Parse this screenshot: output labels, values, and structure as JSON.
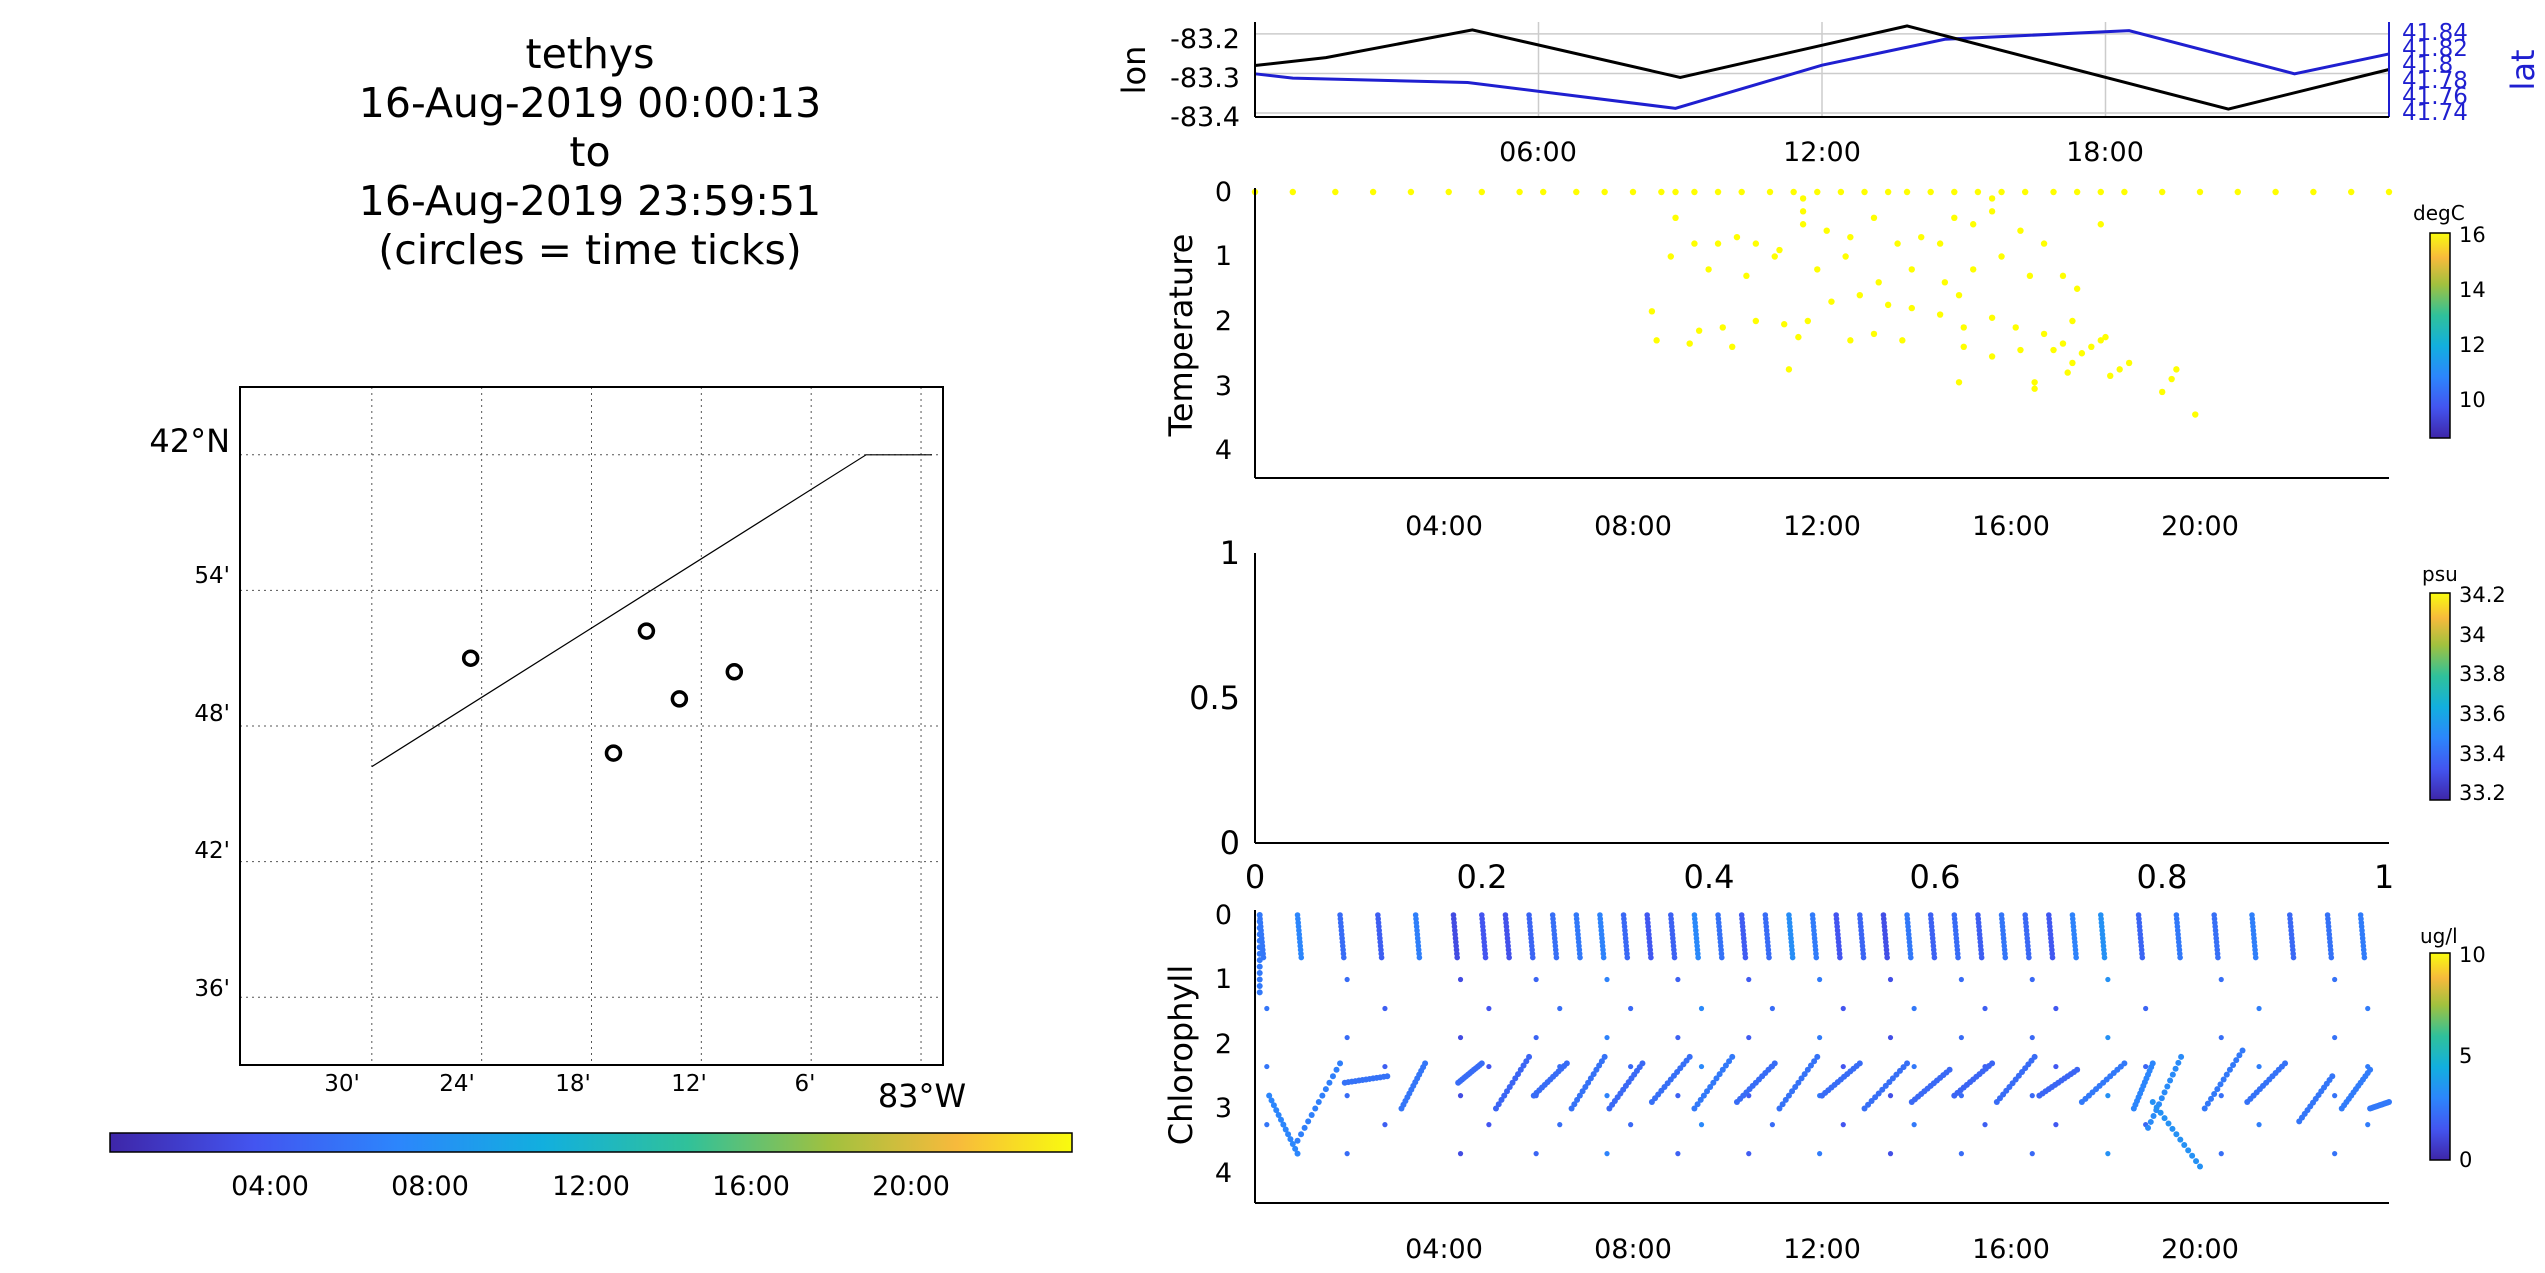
{
  "title_lines": [
    "tethys",
    "16-Aug-2019 00:00:13",
    "to",
    "16-Aug-2019 23:59:51",
    "(circles = time ticks)"
  ],
  "colors": {
    "lon_line": "#000000",
    "lat_line": "#1f1fd0",
    "temperature_points": "#ffff00",
    "grid": "#cccccc"
  },
  "chart_data": [
    {
      "id": "map",
      "type": "scatter",
      "title": "",
      "lat_ticks": [
        "42°N",
        "54'",
        "48'",
        "42'",
        "36'"
      ],
      "lon_ticks": [
        "30'",
        "24'",
        "18'",
        "12'",
        "6'",
        "83°W"
      ],
      "lat_range": [
        41.55,
        42.05
      ],
      "lon_range": [
        -83.62,
        -82.98
      ],
      "grid": "dotted",
      "track": [
        [
          -83.5,
          41.77
        ],
        [
          -83.05,
          42.0
        ],
        [
          -82.99,
          42.0
        ]
      ],
      "time_tick_circles": [
        [
          -83.41,
          41.85
        ],
        [
          -83.25,
          41.87
        ],
        [
          -83.28,
          41.78
        ],
        [
          -83.22,
          41.82
        ],
        [
          -83.17,
          41.84
        ]
      ],
      "colorbar": {
        "ticks": [
          "04:00",
          "08:00",
          "12:00",
          "16:00",
          "20:00"
        ],
        "range_hours": [
          0,
          24
        ],
        "placement": "bottom"
      }
    },
    {
      "id": "lon-lat",
      "type": "line",
      "ylabel": "lon",
      "ylabel_right": "lat",
      "yticks_left": [
        "-83.2",
        "-83.3",
        "-83.4"
      ],
      "yticks_right": [
        "41.84",
        "41.82",
        "41.8",
        "41.78",
        "41.76",
        "41.74"
      ],
      "xticks": [
        "06:00",
        "12:00",
        "18:00"
      ],
      "x_range_hours": [
        0,
        24
      ],
      "ylim_left": [
        -83.41,
        -83.17
      ],
      "ylim_right": [
        41.735,
        41.845
      ],
      "grid": true,
      "series": [
        {
          "name": "lon",
          "axis": "left",
          "x": [
            0,
            1.5,
            4.6,
            9,
            13.8,
            20.6,
            24
          ],
          "values": [
            -83.28,
            -83.26,
            -83.19,
            -83.31,
            -83.18,
            -83.39,
            -83.29
          ]
        },
        {
          "name": "lat",
          "axis": "right",
          "x": [
            0,
            0.8,
            4.5,
            8.9,
            12,
            14.6,
            18.5,
            22,
            24
          ],
          "values": [
            41.785,
            41.78,
            41.775,
            41.745,
            41.795,
            41.825,
            41.835,
            41.785,
            41.808
          ]
        }
      ]
    },
    {
      "id": "temperature",
      "type": "scatter",
      "ylabel": "Temperature",
      "xticks": [
        "04:00",
        "08:00",
        "12:00",
        "16:00",
        "20:00"
      ],
      "yticks": [
        "0",
        "1",
        "2",
        "3",
        "4"
      ],
      "ylim": [
        4.45,
        0
      ],
      "x_range_hours": [
        0,
        24
      ],
      "colorbar": {
        "unit": "degC",
        "ticks": [
          "16",
          "14",
          "12",
          "10"
        ],
        "range": [
          8.5,
          16
        ]
      },
      "points": [
        [
          0,
          0
        ],
        [
          0.8,
          0
        ],
        [
          1.7,
          0
        ],
        [
          2.5,
          0
        ],
        [
          3.3,
          0
        ],
        [
          4.1,
          0
        ],
        [
          4.8,
          0
        ],
        [
          5.6,
          0
        ],
        [
          6.1,
          0
        ],
        [
          6.8,
          0
        ],
        [
          7.4,
          0
        ],
        [
          8.0,
          0
        ],
        [
          8.6,
          0
        ],
        [
          8.9,
          0
        ],
        [
          9.3,
          0
        ],
        [
          9.8,
          0
        ],
        [
          10.3,
          0
        ],
        [
          10.9,
          0
        ],
        [
          11.4,
          0
        ],
        [
          11.9,
          0
        ],
        [
          12.4,
          0
        ],
        [
          12.9,
          0
        ],
        [
          13.4,
          0
        ],
        [
          13.8,
          0
        ],
        [
          14.3,
          0
        ],
        [
          14.8,
          0
        ],
        [
          15.3,
          0
        ],
        [
          15.8,
          0
        ],
        [
          16.3,
          0
        ],
        [
          16.9,
          0
        ],
        [
          17.4,
          0
        ],
        [
          17.9,
          0
        ],
        [
          18.4,
          0
        ],
        [
          19.2,
          0
        ],
        [
          20.0,
          0
        ],
        [
          20.8,
          0
        ],
        [
          21.6,
          0
        ],
        [
          22.4,
          0
        ],
        [
          23.2,
          0
        ],
        [
          24.0,
          0
        ],
        [
          8.9,
          0.4
        ],
        [
          9.3,
          0.8
        ],
        [
          9.8,
          0.8
        ],
        [
          10.2,
          0.7
        ],
        [
          10.6,
          0.8
        ],
        [
          11.1,
          0.9
        ],
        [
          11.6,
          0.5
        ],
        [
          11.6,
          0.3
        ],
        [
          11.6,
          0.1
        ],
        [
          12.1,
          0.6
        ],
        [
          12.6,
          0.7
        ],
        [
          13.1,
          0.4
        ],
        [
          13.6,
          0.8
        ],
        [
          14.1,
          0.7
        ],
        [
          14.5,
          0.8
        ],
        [
          14.8,
          0.4
        ],
        [
          15.2,
          0.5
        ],
        [
          15.6,
          0.3
        ],
        [
          15.6,
          0.1
        ],
        [
          16.2,
          0.6
        ],
        [
          16.7,
          0.8
        ],
        [
          17.9,
          0.5
        ],
        [
          17.1,
          1.3
        ],
        [
          17.4,
          1.5
        ],
        [
          8.8,
          1.0
        ],
        [
          9.6,
          1.2
        ],
        [
          10.4,
          1.3
        ],
        [
          11.0,
          1.0
        ],
        [
          11.9,
          1.2
        ],
        [
          12.5,
          1.0
        ],
        [
          13.2,
          1.4
        ],
        [
          13.9,
          1.2
        ],
        [
          14.6,
          1.4
        ],
        [
          15.2,
          1.2
        ],
        [
          15.8,
          1.0
        ],
        [
          16.4,
          1.3
        ],
        [
          14.9,
          1.6
        ],
        [
          8.4,
          1.85
        ],
        [
          9.4,
          2.15
        ],
        [
          9.9,
          2.1
        ],
        [
          10.6,
          2.0
        ],
        [
          11.2,
          2.05
        ],
        [
          11.7,
          2.0
        ],
        [
          12.2,
          1.7
        ],
        [
          12.8,
          1.6
        ],
        [
          13.4,
          1.75
        ],
        [
          13.9,
          1.8
        ],
        [
          14.5,
          1.9
        ],
        [
          15.0,
          2.1
        ],
        [
          15.6,
          1.95
        ],
        [
          16.1,
          2.1
        ],
        [
          16.7,
          2.2
        ],
        [
          17.3,
          2.0
        ],
        [
          8.5,
          2.3
        ],
        [
          9.2,
          2.35
        ],
        [
          10.1,
          2.4
        ],
        [
          11.5,
          2.25
        ],
        [
          12.6,
          2.3
        ],
        [
          13.1,
          2.2
        ],
        [
          13.7,
          2.3
        ],
        [
          15.0,
          2.4
        ],
        [
          15.6,
          2.55
        ],
        [
          16.2,
          2.45
        ],
        [
          11.3,
          2.75
        ],
        [
          14.9,
          2.95
        ],
        [
          16.5,
          2.95
        ],
        [
          16.5,
          3.05
        ],
        [
          16.9,
          2.45
        ],
        [
          17.1,
          2.35
        ],
        [
          17.3,
          2.65
        ],
        [
          17.5,
          2.5
        ],
        [
          17.7,
          2.4
        ],
        [
          17.9,
          2.3
        ],
        [
          18.0,
          2.25
        ],
        [
          17.2,
          2.8
        ],
        [
          18.1,
          2.85
        ],
        [
          18.3,
          2.75
        ],
        [
          18.5,
          2.65
        ],
        [
          19.2,
          3.1
        ],
        [
          19.4,
          2.9
        ],
        [
          19.5,
          2.75
        ],
        [
          19.9,
          3.45
        ]
      ]
    },
    {
      "id": "salinity",
      "type": "scatter",
      "ylabel": "",
      "xticks": [
        "0",
        "0.2",
        "0.4",
        "0.6",
        "0.8",
        "1"
      ],
      "yticks": [
        "0",
        "0.5",
        "1"
      ],
      "xlim": [
        0,
        1
      ],
      "ylim": [
        0,
        1
      ],
      "colorbar": {
        "unit": "psu",
        "ticks": [
          "34.2",
          "34",
          "33.8",
          "33.6",
          "33.4",
          "33.2"
        ],
        "range": [
          33.15,
          34.25
        ]
      },
      "points": []
    },
    {
      "id": "chlorophyll",
      "type": "scatter",
      "ylabel": "Chlorophyll",
      "xticks": [
        "04:00",
        "08:00",
        "12:00",
        "16:00",
        "20:00"
      ],
      "yticks": [
        "0",
        "1",
        "2",
        "3",
        "4"
      ],
      "ylim": [
        4.45,
        0
      ],
      "x_range_hours": [
        0,
        24
      ],
      "colorbar": {
        "unit": "ug/l",
        "ticks": [
          "10",
          "5",
          "0"
        ],
        "range": [
          0,
          10
        ]
      },
      "profile_hours": [
        0.1,
        0.9,
        1.8,
        2.6,
        3.4,
        4.2,
        4.8,
        5.3,
        5.8,
        6.3,
        6.8,
        7.3,
        7.8,
        8.3,
        8.8,
        9.3,
        9.8,
        10.3,
        10.8,
        11.3,
        11.8,
        12.3,
        12.8,
        13.3,
        13.8,
        14.3,
        14.8,
        15.3,
        15.8,
        16.3,
        16.8,
        17.3,
        17.9,
        18.7,
        19.5,
        20.3,
        21.1,
        21.9,
        22.7,
        23.4
      ],
      "profile_values": [
        2.5,
        3.0,
        2.2,
        1.8,
        2.8,
        1.2,
        1.5,
        1.4,
        2.0,
        2.3,
        2.6,
        2.9,
        2.1,
        1.6,
        1.9,
        3.1,
        2.4,
        1.7,
        2.2,
        3.3,
        2.7,
        1.5,
        2.0,
        1.3,
        2.6,
        1.9,
        2.2,
        1.8,
        2.5,
        2.1,
        1.6,
        2.9,
        3.4,
        2.0,
        2.6,
        2.3,
        2.8,
        2.1,
        2.4,
        2.7
      ],
      "segments": [
        [
          0.1,
          0.0,
          0.1,
          1.2,
          2.6
        ],
        [
          0.3,
          2.8,
          0.9,
          3.7,
          3.0
        ],
        [
          0.9,
          3.5,
          1.8,
          2.3,
          2.8
        ],
        [
          1.9,
          2.6,
          2.8,
          2.5,
          2.4
        ],
        [
          3.1,
          3.0,
          3.6,
          2.3,
          2.5
        ],
        [
          4.3,
          2.6,
          4.8,
          2.3,
          2.2
        ],
        [
          5.1,
          3.0,
          5.8,
          2.2,
          2.0
        ],
        [
          5.9,
          2.8,
          6.6,
          2.3,
          2.2
        ],
        [
          6.7,
          3.0,
          7.4,
          2.2,
          2.4
        ],
        [
          7.5,
          3.0,
          8.2,
          2.3,
          2.1
        ],
        [
          8.4,
          2.9,
          9.2,
          2.2,
          2.3
        ],
        [
          9.3,
          3.0,
          10.1,
          2.2,
          2.6
        ],
        [
          10.2,
          2.9,
          11.0,
          2.3,
          2.2
        ],
        [
          11.1,
          3.0,
          11.9,
          2.2,
          2.4
        ],
        [
          12.0,
          2.8,
          12.8,
          2.3,
          2.2
        ],
        [
          12.9,
          3.0,
          13.8,
          2.3,
          2.3
        ],
        [
          13.9,
          2.9,
          14.7,
          2.4,
          2.1
        ],
        [
          14.8,
          2.8,
          15.6,
          2.3,
          2.0
        ],
        [
          15.7,
          2.9,
          16.5,
          2.2,
          2.2
        ],
        [
          16.6,
          2.8,
          17.4,
          2.4,
          2.0
        ],
        [
          17.5,
          2.9,
          18.4,
          2.3,
          2.6
        ],
        [
          18.6,
          3.0,
          19.0,
          2.3,
          3.0
        ],
        [
          18.9,
          3.3,
          19.6,
          2.2,
          3.2
        ],
        [
          19.0,
          2.9,
          20.0,
          3.9,
          3.4
        ],
        [
          20.1,
          3.0,
          20.9,
          2.1,
          2.6
        ],
        [
          21.0,
          2.9,
          21.8,
          2.3,
          2.4
        ],
        [
          22.1,
          3.2,
          22.8,
          2.5,
          2.5
        ],
        [
          23.0,
          3.0,
          23.6,
          2.4,
          2.7
        ],
        [
          23.6,
          3.0,
          24.0,
          2.9,
          2.6
        ]
      ]
    }
  ]
}
